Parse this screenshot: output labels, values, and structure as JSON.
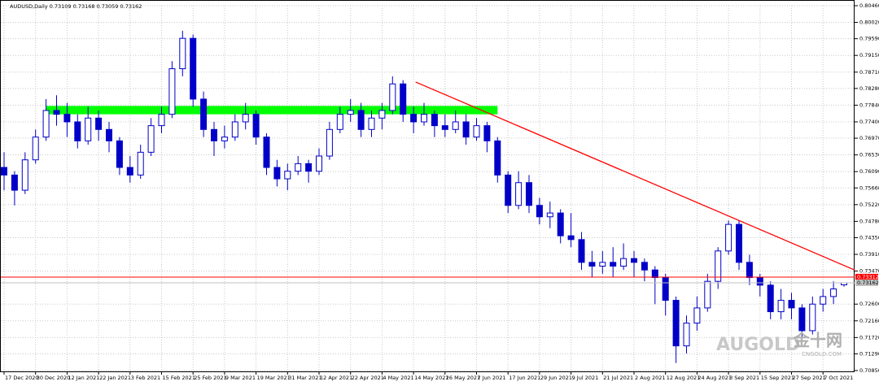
{
  "chart_data": {
    "type": "candlestick",
    "header": "AUDUSD,Daily  0.73109 0.73168 0.73059 0.73162",
    "categories": [
      "17 Dec 2020",
      null,
      null,
      "30 Dec 2020",
      null,
      null,
      "12 Jan 2021",
      null,
      null,
      "22 Jan 2021",
      null,
      null,
      "3 Feb 2021",
      null,
      null,
      "15 Feb 2021",
      null,
      null,
      "25 Feb 2021",
      null,
      null,
      "9 Mar 2021",
      null,
      null,
      "19 Mar 2021",
      null,
      null,
      "31 Mar 2021",
      null,
      null,
      "12 Apr 2021",
      null,
      null,
      "22 Apr 2021",
      null,
      null,
      "4 May 2021",
      null,
      null,
      "14 May 2021",
      null,
      null,
      "26 May 2021",
      null,
      null,
      "7 Jun 2021",
      null,
      null,
      "17 Jun 2021",
      null,
      null,
      "29 Jun 2021",
      null,
      null,
      "9 Jul 2021",
      null,
      null,
      "21 Jul 2021",
      null,
      null,
      "2 Aug 2021",
      null,
      null,
      "12 Aug 2021",
      null,
      null,
      "24 Aug 2021",
      null,
      null,
      "3 Sep 2021",
      null,
      null,
      "15 Sep 2021",
      null,
      null,
      "27 Sep 2021",
      null,
      null,
      "7 Oct 2021",
      null,
      null
    ],
    "ohlc": [
      [
        0.762,
        0.766,
        0.756,
        0.76
      ],
      [
        0.76,
        0.761,
        0.752,
        0.756
      ],
      [
        0.756,
        0.766,
        0.755,
        0.764
      ],
      [
        0.764,
        0.772,
        0.763,
        0.77
      ],
      [
        0.77,
        0.78,
        0.769,
        0.777
      ],
      [
        0.777,
        0.781,
        0.773,
        0.776
      ],
      [
        0.776,
        0.779,
        0.77,
        0.774
      ],
      [
        0.774,
        0.776,
        0.767,
        0.769
      ],
      [
        0.769,
        0.778,
        0.768,
        0.775
      ],
      [
        0.775,
        0.777,
        0.769,
        0.772
      ],
      [
        0.772,
        0.774,
        0.766,
        0.769
      ],
      [
        0.769,
        0.77,
        0.76,
        0.762
      ],
      [
        0.762,
        0.765,
        0.758,
        0.76
      ],
      [
        0.76,
        0.768,
        0.759,
        0.766
      ],
      [
        0.766,
        0.775,
        0.765,
        0.773
      ],
      [
        0.773,
        0.778,
        0.771,
        0.776
      ],
      [
        0.776,
        0.79,
        0.775,
        0.788
      ],
      [
        0.788,
        0.798,
        0.786,
        0.796
      ],
      [
        0.796,
        0.797,
        0.778,
        0.78
      ],
      [
        0.78,
        0.782,
        0.77,
        0.772
      ],
      [
        0.772,
        0.774,
        0.765,
        0.769
      ],
      [
        0.769,
        0.773,
        0.767,
        0.77
      ],
      [
        0.77,
        0.776,
        0.769,
        0.774
      ],
      [
        0.774,
        0.779,
        0.772,
        0.776
      ],
      [
        0.776,
        0.777,
        0.768,
        0.77
      ],
      [
        0.77,
        0.771,
        0.76,
        0.762
      ],
      [
        0.762,
        0.764,
        0.757,
        0.759
      ],
      [
        0.759,
        0.763,
        0.756,
        0.761
      ],
      [
        0.761,
        0.765,
        0.76,
        0.763
      ],
      [
        0.763,
        0.764,
        0.758,
        0.761
      ],
      [
        0.761,
        0.767,
        0.76,
        0.765
      ],
      [
        0.765,
        0.774,
        0.764,
        0.772
      ],
      [
        0.772,
        0.778,
        0.771,
        0.776
      ],
      [
        0.776,
        0.78,
        0.774,
        0.777
      ],
      [
        0.777,
        0.779,
        0.77,
        0.772
      ],
      [
        0.772,
        0.777,
        0.77,
        0.775
      ],
      [
        0.775,
        0.779,
        0.772,
        0.777
      ],
      [
        0.777,
        0.786,
        0.776,
        0.784
      ],
      [
        0.784,
        0.785,
        0.774,
        0.776
      ],
      [
        0.776,
        0.778,
        0.771,
        0.774
      ],
      [
        0.774,
        0.779,
        0.773,
        0.776
      ],
      [
        0.776,
        0.777,
        0.77,
        0.773
      ],
      [
        0.773,
        0.776,
        0.77,
        0.772
      ],
      [
        0.772,
        0.777,
        0.771,
        0.774
      ],
      [
        0.774,
        0.776,
        0.768,
        0.77
      ],
      [
        0.77,
        0.775,
        0.769,
        0.773
      ],
      [
        0.773,
        0.774,
        0.766,
        0.769
      ],
      [
        0.769,
        0.77,
        0.758,
        0.76
      ],
      [
        0.76,
        0.761,
        0.75,
        0.752
      ],
      [
        0.752,
        0.761,
        0.751,
        0.758
      ],
      [
        0.758,
        0.76,
        0.75,
        0.752
      ],
      [
        0.752,
        0.754,
        0.747,
        0.749
      ],
      [
        0.749,
        0.753,
        0.746,
        0.75
      ],
      [
        0.75,
        0.751,
        0.742,
        0.744
      ],
      [
        0.744,
        0.75,
        0.741,
        0.743
      ],
      [
        0.743,
        0.745,
        0.735,
        0.737
      ],
      [
        0.737,
        0.74,
        0.733,
        0.736
      ],
      [
        0.736,
        0.74,
        0.734,
        0.737
      ],
      [
        0.737,
        0.741,
        0.733,
        0.736
      ],
      [
        0.736,
        0.742,
        0.735,
        0.738
      ],
      [
        0.738,
        0.74,
        0.733,
        0.737
      ],
      [
        0.737,
        0.738,
        0.732,
        0.735
      ],
      [
        0.735,
        0.736,
        0.726,
        0.733
      ],
      [
        0.733,
        0.734,
        0.723,
        0.727
      ],
      [
        0.727,
        0.728,
        0.7105,
        0.715
      ],
      [
        0.715,
        0.723,
        0.713,
        0.721
      ],
      [
        0.721,
        0.728,
        0.719,
        0.725
      ],
      [
        0.725,
        0.734,
        0.724,
        0.732
      ],
      [
        0.732,
        0.741,
        0.73,
        0.74
      ],
      [
        0.74,
        0.748,
        0.739,
        0.747
      ],
      [
        0.747,
        0.748,
        0.735,
        0.737
      ],
      [
        0.737,
        0.739,
        0.731,
        0.733
      ],
      [
        0.733,
        0.734,
        0.728,
        0.731
      ],
      [
        0.731,
        0.732,
        0.722,
        0.724
      ],
      [
        0.724,
        0.73,
        0.722,
        0.727
      ],
      [
        0.727,
        0.729,
        0.722,
        0.725
      ],
      [
        0.725,
        0.726,
        0.717,
        0.719
      ],
      [
        0.719,
        0.728,
        0.718,
        0.726
      ],
      [
        0.726,
        0.73,
        0.724,
        0.728
      ],
      [
        0.728,
        0.732,
        0.726,
        0.73
      ],
      [
        0.73109,
        0.73168,
        0.73059,
        0.73162
      ]
    ],
    "up_color": "#ffffff",
    "down_color": "#0000c8",
    "line_color": "#0000c8",
    "ylim": [
      0.7085,
      0.8046
    ],
    "yticks": [
      {
        "value": 0.8046,
        "label": "0.80460"
      },
      {
        "value": 0.8002,
        "label": "0.80020"
      },
      {
        "value": 0.7959,
        "label": "0.79590"
      },
      {
        "value": 0.7915,
        "label": "0.79150"
      },
      {
        "value": 0.7871,
        "label": "0.78710"
      },
      {
        "value": 0.7828,
        "label": "0.78280"
      },
      {
        "value": 0.7784,
        "label": "0.77840"
      },
      {
        "value": 0.774,
        "label": "0.77400"
      },
      {
        "value": 0.7697,
        "label": "0.76970"
      },
      {
        "value": 0.7653,
        "label": "0.76530"
      },
      {
        "value": 0.7609,
        "label": "0.76090"
      },
      {
        "value": 0.7566,
        "label": "0.75660"
      },
      {
        "value": 0.7522,
        "label": "0.75220"
      },
      {
        "value": 0.7478,
        "label": "0.74780"
      },
      {
        "value": 0.7435,
        "label": "0.74350"
      },
      {
        "value": 0.7391,
        "label": "0.73910"
      },
      {
        "value": 0.7347,
        "label": "0.73470"
      },
      {
        "value": 0.726,
        "label": "0.72600"
      },
      {
        "value": 0.7216,
        "label": "0.72160"
      },
      {
        "value": 0.7172,
        "label": "0.71720"
      },
      {
        "value": 0.7129,
        "label": "0.71290"
      },
      {
        "value": 0.7085,
        "label": "0.70850"
      }
    ],
    "grid": true,
    "hline": {
      "value": 0.73312,
      "label": "0.73312",
      "color": "#ff0000"
    },
    "bid": {
      "value": 0.73162,
      "label": "0.73162",
      "color": "#c0c0c0"
    },
    "zone": {
      "x": [
        4,
        47
      ],
      "y": [
        0.776,
        0.7782
      ],
      "color": "#00ff00"
    },
    "trendline": {
      "x": [
        39.2,
        81
      ],
      "y": [
        0.7845,
        0.735
      ],
      "color": "#ff0000"
    },
    "watermark": [
      "AUGOLD",
      "金十网",
      "CNGOLD.COM"
    ]
  }
}
